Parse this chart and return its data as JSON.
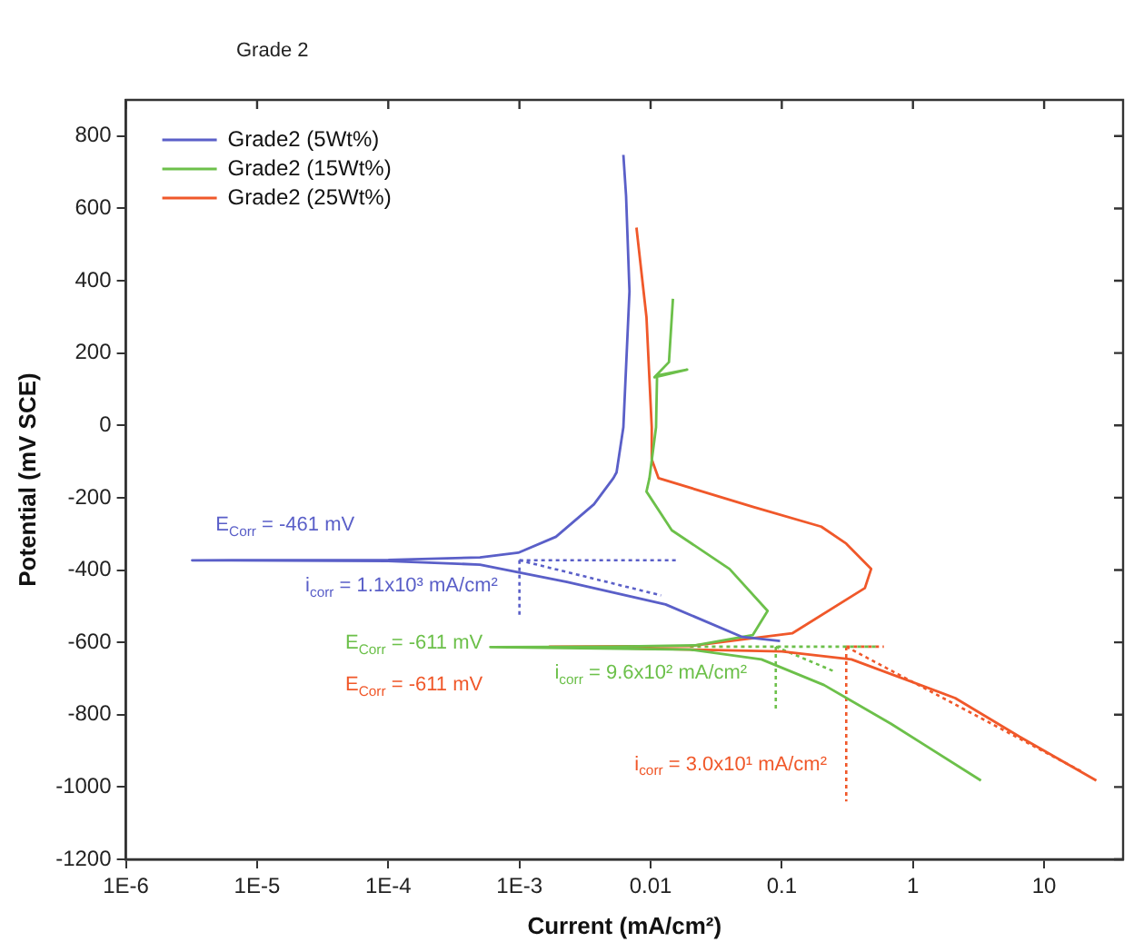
{
  "chart_data": {
    "type": "line",
    "title": "Grade 2",
    "xlabel": "Current (mA/cm²)",
    "ylabel": "Potential (mV SCE)",
    "log": "x",
    "grid": false,
    "legend": "top left",
    "marker": "none",
    "xlim": [
      1e-06,
      40
    ],
    "xticks": [
      {
        "value": 1e-06,
        "label": "1E-6"
      },
      {
        "value": 1e-05,
        "label": "1E-5"
      },
      {
        "value": 0.0001,
        "label": "1E-4"
      },
      {
        "value": 0.001,
        "label": "1E-3"
      },
      0.01,
      0.1,
      1,
      10
    ],
    "ylim": [
      -1200,
      900
    ],
    "yticks": [
      -1200,
      -1000,
      -800,
      -600,
      -400,
      -200,
      0,
      200,
      400,
      600,
      800
    ],
    "series": [
      {
        "name": "Grade2 (5Wt%)",
        "color": "#5a5fc8",
        "x": [
          0.097,
          0.05,
          0.013,
          0.0023,
          0.0005,
          0.0001,
          3.2e-06,
          0.0001,
          0.0005,
          0.00098,
          0.0019,
          0.0037,
          0.0052,
          0.0055,
          0.0062,
          0.0069,
          0.0065,
          0.0062
        ],
        "values": [
          -596,
          -585,
          -495,
          -433,
          -385,
          -375,
          -373,
          -372,
          -365,
          -352,
          -308,
          -218,
          -146,
          -130,
          -5,
          371,
          635,
          748
        ]
      },
      {
        "name": "Grade2 (15Wt%)",
        "color": "#6cc04a",
        "x": [
          3.3,
          0.68,
          0.21,
          0.07,
          0.02,
          0.0006,
          0.005,
          0.022,
          0.06,
          0.078,
          0.04,
          0.0145,
          0.0093,
          0.0098,
          0.011,
          0.0112,
          0.019,
          0.0107,
          0.0138,
          0.0148
        ],
        "values": [
          -982,
          -825,
          -718,
          -647,
          -620,
          -613,
          -612,
          -608,
          -580,
          -513,
          -397,
          -290,
          -183,
          -146,
          -5,
          138,
          154,
          133,
          175,
          350
        ]
      },
      {
        "name": "Grade2 (25Wt%)",
        "color": "#f0582a",
        "x": [
          25,
          6.5,
          2.1,
          0.34,
          0.1,
          0.0017,
          0.02,
          0.12,
          0.43,
          0.48,
          0.31,
          0.2,
          0.06,
          0.0115,
          0.0102,
          0.0102,
          0.0093,
          0.0078
        ],
        "values": [
          -982,
          -861,
          -754,
          -647,
          -625,
          -612,
          -610,
          -575,
          -450,
          -397,
          -327,
          -280,
          -225,
          -146,
          -94,
          -5,
          299,
          547
        ]
      },
      {
        "color": "#5a5fc8",
        "line_style": "dotted",
        "x": [
          0.001,
          0.016
        ],
        "values": [
          -373,
          -373
        ]
      },
      {
        "color": "#5a5fc8",
        "line_style": "dotted",
        "x": [
          0.001,
          0.001
        ],
        "values": [
          -373,
          -531
        ]
      },
      {
        "color": "#5a5fc8",
        "line_style": "dotted",
        "x": [
          0.001,
          0.012
        ],
        "values": [
          -373,
          -470
        ]
      },
      {
        "color": "#6cc04a",
        "line_style": "dotted",
        "x": [
          0.02,
          0.55
        ],
        "values": [
          -612,
          -612
        ]
      },
      {
        "color": "#6cc04a",
        "line_style": "dotted",
        "x": [
          0.09,
          0.09
        ],
        "values": [
          -612,
          -790
        ]
      },
      {
        "color": "#6cc04a",
        "line_style": "dotted",
        "x": [
          0.09,
          0.25
        ],
        "values": [
          -612,
          -680
        ]
      },
      {
        "color": "#f0582a",
        "line_style": "dotted",
        "x": [
          0.31,
          0.6
        ],
        "values": [
          -612,
          -612
        ]
      },
      {
        "color": "#f0582a",
        "line_style": "dotted",
        "x": [
          0.31,
          0.31
        ],
        "values": [
          -612,
          -1040
        ]
      },
      {
        "color": "#f0582a",
        "line_style": "dotted",
        "x": [
          0.31,
          20
        ],
        "values": [
          -612,
          -960
        ]
      }
    ],
    "annotations": [
      "E$_{Corr}$ = -461 mV",
      "i$_{corr}$ = 1.1x10³ mA/cm²",
      "E$_{Corr}$ = -611 mV",
      "E$_{Corr}$ = -611 mV",
      "i$_{corr}$ = 9.6x10² mA/cm²",
      "i$_{corr}$ = 3.0x10¹ mA/cm²"
    ]
  }
}
